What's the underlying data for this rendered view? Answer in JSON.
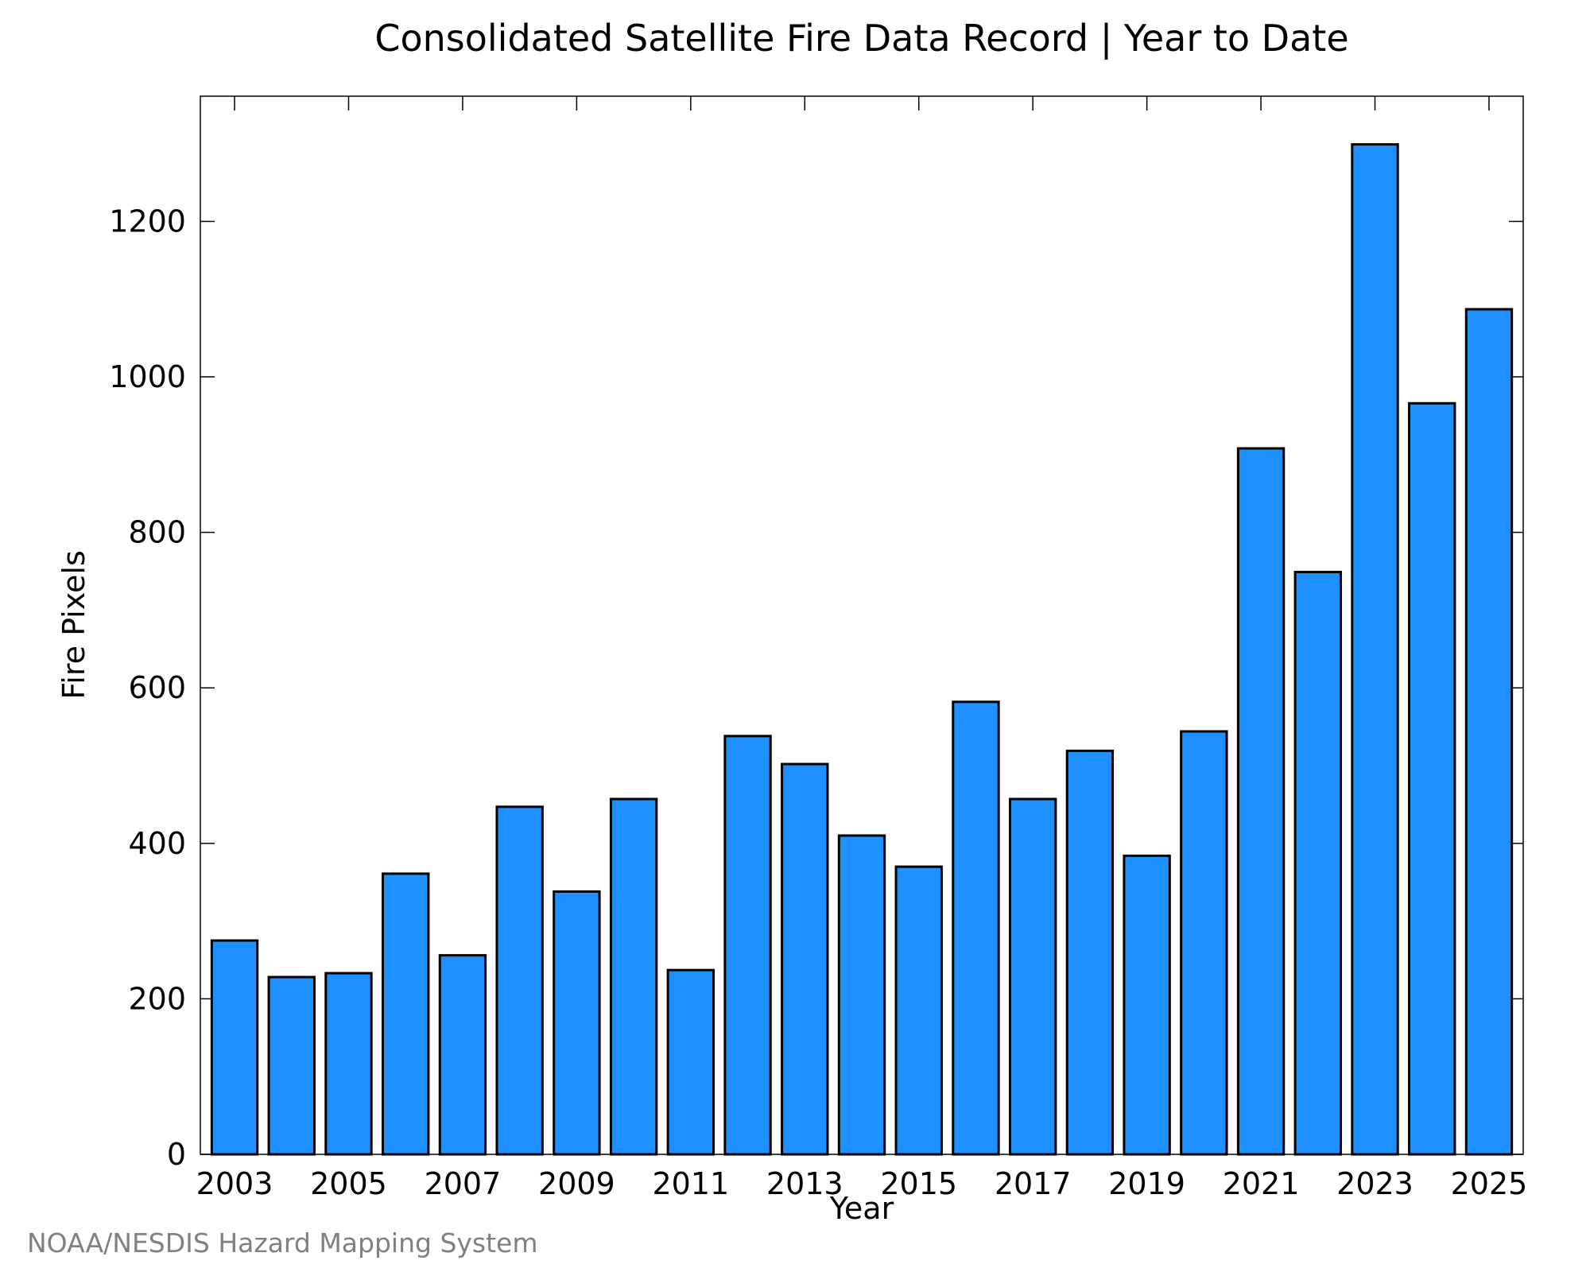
{
  "chart_data": {
    "type": "bar",
    "title": "Consolidated Satellite Fire Data Record | Year to Date",
    "xlabel": "Year",
    "ylabel": "Fire Pixels",
    "credit": "NOAA/NESDIS Hazard Mapping System",
    "categories": [
      "2003",
      "2004",
      "2005",
      "2006",
      "2007",
      "2008",
      "2009",
      "2010",
      "2011",
      "2012",
      "2013",
      "2014",
      "2015",
      "2016",
      "2017",
      "2018",
      "2019",
      "2020",
      "2021",
      "2022",
      "2023",
      "2024",
      "2025"
    ],
    "values": [
      275,
      228,
      233,
      361,
      256,
      447,
      338,
      457,
      237,
      538,
      502,
      410,
      370,
      582,
      457,
      519,
      384,
      544,
      908,
      749,
      1299,
      966,
      1087
    ],
    "x_tick_labels": [
      "2003",
      "2005",
      "2007",
      "2009",
      "2011",
      "2013",
      "2015",
      "2017",
      "2019",
      "2021",
      "2023",
      "2025"
    ],
    "y_ticks": [
      0,
      200,
      400,
      600,
      800,
      1000,
      1200
    ],
    "ylim": [
      0,
      1361
    ],
    "grid": false,
    "legend": "none",
    "bar_color": "#1e90ff",
    "bar_edge_color": "#000000"
  }
}
